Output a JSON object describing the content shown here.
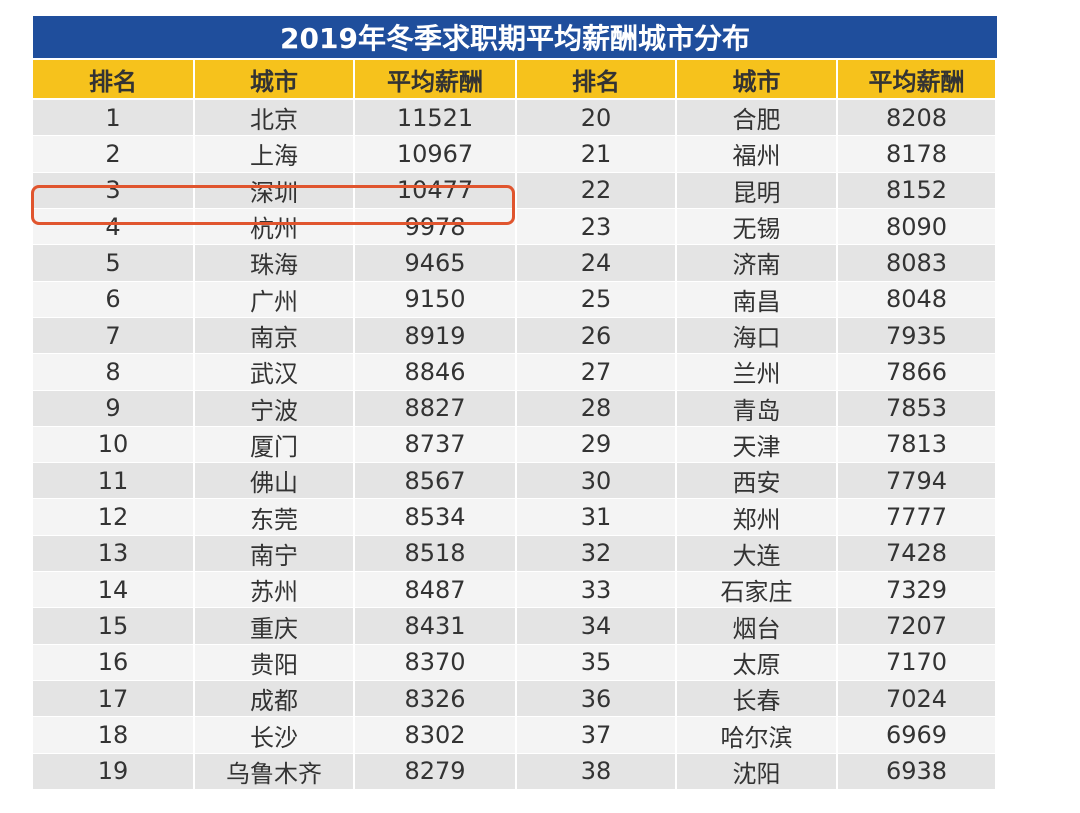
{
  "table": {
    "title": "2019年冬季求职期平均薪酬城市分布",
    "header": [
      "排名",
      "城市",
      "平均薪酬",
      "排名",
      "城市",
      "平均薪酬"
    ],
    "rows": [
      [
        1,
        "北京",
        11521,
        20,
        "合肥",
        8208
      ],
      [
        2,
        "上海",
        10967,
        21,
        "福州",
        8178
      ],
      [
        3,
        "深圳",
        10477,
        22,
        "昆明",
        8152
      ],
      [
        4,
        "杭州",
        9978,
        23,
        "无锡",
        8090
      ],
      [
        5,
        "珠海",
        9465,
        24,
        "济南",
        8083
      ],
      [
        6,
        "广州",
        9150,
        25,
        "南昌",
        8048
      ],
      [
        7,
        "南京",
        8919,
        26,
        "海口",
        7935
      ],
      [
        8,
        "武汉",
        8846,
        27,
        "兰州",
        7866
      ],
      [
        9,
        "宁波",
        8827,
        28,
        "青岛",
        7853
      ],
      [
        10,
        "厦门",
        8737,
        29,
        "天津",
        7813
      ],
      [
        11,
        "佛山",
        8567,
        30,
        "西安",
        7794
      ],
      [
        12,
        "东莞",
        8534,
        31,
        "郑州",
        7777
      ],
      [
        13,
        "南宁",
        8518,
        32,
        "大连",
        7428
      ],
      [
        14,
        "苏州",
        8487,
        33,
        "石家庄",
        7329
      ],
      [
        15,
        "重庆",
        8431,
        34,
        "烟台",
        7207
      ],
      [
        16,
        "贵阳",
        8370,
        35,
        "太原",
        7170
      ],
      [
        17,
        "成都",
        8326,
        36,
        "长春",
        7024
      ],
      [
        18,
        "长沙",
        8302,
        37,
        "哈尔滨",
        6969
      ],
      [
        19,
        "乌鲁木齐",
        8279,
        38,
        "沈阳",
        6938
      ]
    ]
  }
}
